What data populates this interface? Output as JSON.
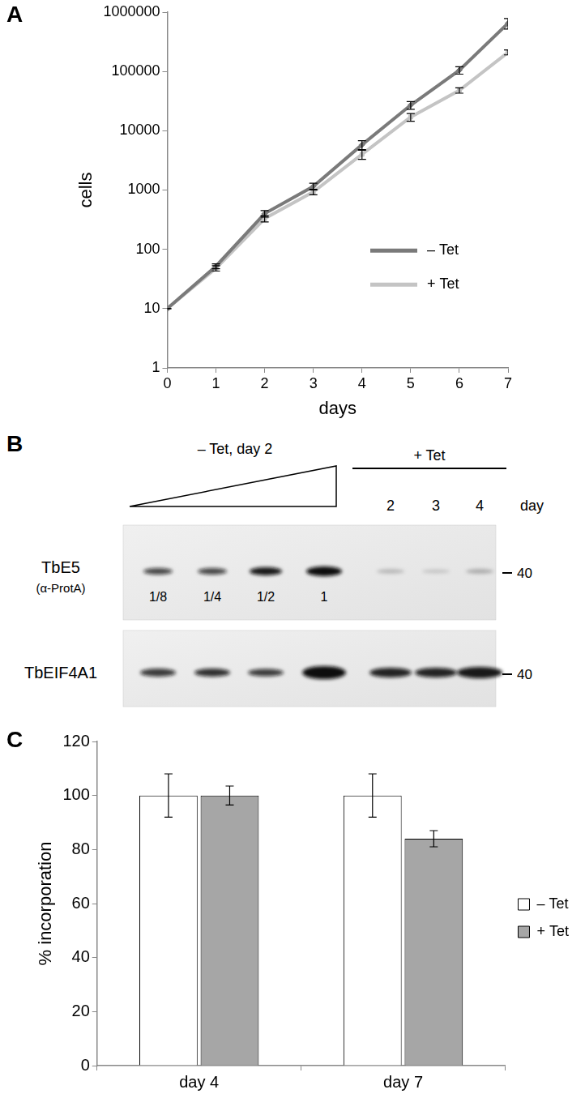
{
  "chart_data": [
    {
      "type": "line",
      "title": "A",
      "x_label": "days",
      "y_label": "cells",
      "x": [
        0,
        1,
        2,
        3,
        4,
        5,
        6,
        7
      ],
      "xlim": [
        0,
        7
      ],
      "xticks": [
        0,
        1,
        2,
        3,
        4,
        5,
        6,
        7
      ],
      "ylim": [
        1,
        1000000
      ],
      "yticks": [
        1,
        10,
        100,
        1000,
        10000,
        100000,
        1000000
      ],
      "log": "y",
      "grid": false,
      "legend": "right",
      "series": [
        {
          "name": "– Tet",
          "color": "#7a7a7a",
          "marker": "diamond",
          "values": [
            10,
            52,
            400,
            1150,
            5800,
            27000,
            105000,
            650000
          ],
          "errors": [
            0,
            5,
            50,
            150,
            1000,
            4000,
            15000,
            130000
          ]
        },
        {
          "name": "+ Tet",
          "color": "#c4c4c4",
          "marker": "square",
          "values": [
            10,
            48,
            330,
            930,
            4000,
            17000,
            48000,
            210000
          ],
          "errors": [
            0,
            5,
            40,
            100,
            700,
            2500,
            5000,
            20000
          ]
        }
      ]
    },
    {
      "type": "bar",
      "title": "C",
      "y_label": "% incorporation",
      "categories": [
        "day 4",
        "day 7"
      ],
      "ylim": [
        0,
        120
      ],
      "yticks": [
        0,
        20,
        40,
        60,
        80,
        100,
        120
      ],
      "grid": false,
      "legend": "right",
      "series": [
        {
          "name": "– Tet",
          "color": "#ffffff",
          "values": [
            100,
            100
          ],
          "errors": [
            8,
            8
          ]
        },
        {
          "name": "+ Tet",
          "color": "#a6a6a6",
          "values": [
            100,
            84
          ],
          "errors": [
            3.5,
            3
          ]
        }
      ]
    }
  ],
  "blot": {
    "title": "B",
    "ramp_label": "– Tet, day 2",
    "group_label": "+ Tet",
    "days": [
      "2",
      "3",
      "4"
    ],
    "day_label": "day",
    "rows": [
      {
        "label": "TbE5",
        "sublabel": "(α-ProtA)",
        "lane_labels": [
          "1/8",
          "1/4",
          "1/2",
          "1"
        ],
        "mw_marker": 40
      },
      {
        "label": "TbEIF4A1",
        "mw_marker": 40
      }
    ]
  }
}
